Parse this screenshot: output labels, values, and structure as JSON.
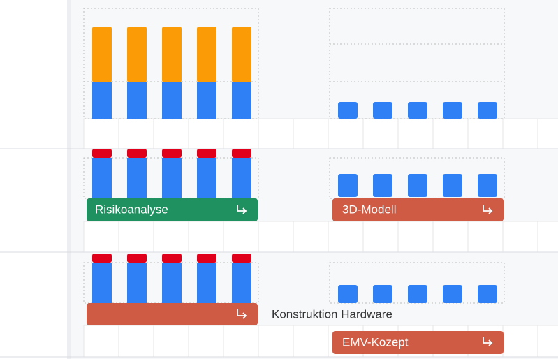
{
  "tasks": [
    {
      "label": "Risikoanalyse"
    },
    {
      "label": "3D-Modell"
    },
    {
      "label": "Konstruktion Hardware"
    },
    {
      "label": "EMV-Kozept"
    }
  ]
}
